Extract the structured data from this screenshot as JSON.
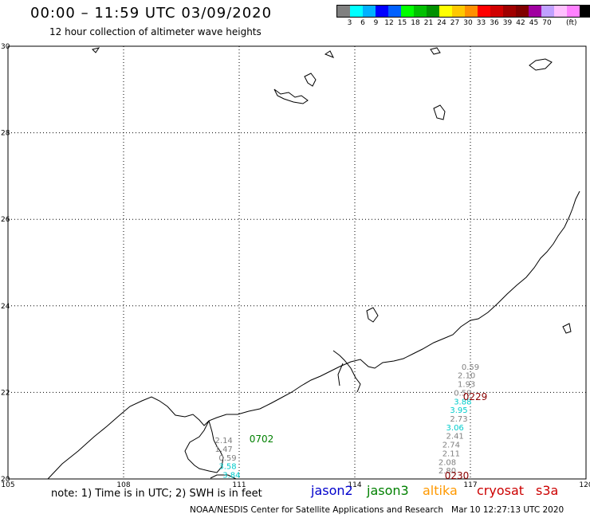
{
  "title": "00:00 – 11:59 UTC 03/09/2020",
  "subtitle": "12 hour collection of altimeter wave heights",
  "legend": {
    "colors": [
      "#808080",
      "#00ffff",
      "#00b0ff",
      "#0000ff",
      "#0060ff",
      "#00ff00",
      "#00c000",
      "#009000",
      "#ffff00",
      "#ffc800",
      "#ff9000",
      "#ff0000",
      "#d00000",
      "#a00000",
      "#800000",
      "#a000a0",
      "#c0a0ff",
      "#ffc0ff",
      "#ff80ff",
      "#000000"
    ],
    "ticks": [
      "3",
      "6",
      "9",
      "12",
      "15",
      "18",
      "21",
      "24",
      "27",
      "30",
      "33",
      "36",
      "39",
      "42",
      "45",
      "70"
    ],
    "unit": "(ft)"
  },
  "axes": {
    "lon_ticks": [
      "105",
      "108",
      "111",
      "114",
      "117",
      "120"
    ],
    "lat_ticks": [
      "30",
      "28",
      "26",
      "24",
      "22",
      "20"
    ]
  },
  "tracks": [
    {
      "satellite": "cryosat",
      "pass_label": "0229",
      "color": "#8b0000",
      "points": [
        {
          "lat": 22.6,
          "lon": 117.0,
          "v": "0.59",
          "c": "#808080"
        },
        {
          "lat": 22.4,
          "lon": 116.9,
          "v": "2.10",
          "c": "#808080"
        },
        {
          "lat": 22.2,
          "lon": 116.9,
          "v": "1.93",
          "c": "#808080"
        },
        {
          "lat": 22.0,
          "lon": 116.8,
          "v": "0.59",
          "c": "#808080"
        },
        {
          "lat": 21.8,
          "lon": 116.8,
          "v": "3.88",
          "c": "#00cccc"
        },
        {
          "lat": 21.6,
          "lon": 116.7,
          "v": "3.95",
          "c": "#00cccc"
        },
        {
          "lat": 21.4,
          "lon": 116.7,
          "v": "2.73",
          "c": "#808080"
        },
        {
          "lat": 21.2,
          "lon": 116.6,
          "v": "3.06",
          "c": "#00cccc"
        },
        {
          "lat": 21.0,
          "lon": 116.6,
          "v": "2.41",
          "c": "#808080"
        },
        {
          "lat": 20.8,
          "lon": 116.5,
          "v": "2.74",
          "c": "#808080"
        },
        {
          "lat": 20.6,
          "lon": 116.5,
          "v": "2.11",
          "c": "#808080"
        },
        {
          "lat": 20.4,
          "lon": 116.4,
          "v": "2.08",
          "c": "#808080"
        },
        {
          "lat": 20.2,
          "lon": 116.4,
          "v": "2.80",
          "c": "#808080"
        }
      ]
    },
    {
      "satellite": "cryosat",
      "pass_label": "0230",
      "color": "#8b0000",
      "points": []
    },
    {
      "satellite": "jason3",
      "pass_label": "0702",
      "color": "#008000",
      "points": [
        {
          "lat": 20.9,
          "lon": 110.6,
          "v": "2.14",
          "c": "#808080"
        },
        {
          "lat": 20.7,
          "lon": 110.6,
          "v": "1.47",
          "c": "#808080"
        },
        {
          "lat": 20.5,
          "lon": 110.7,
          "v": "0.59",
          "c": "#808080"
        },
        {
          "lat": 20.3,
          "lon": 110.7,
          "v": "3.58",
          "c": "#00cccc"
        },
        {
          "lat": 20.1,
          "lon": 110.8,
          "v": "3.84",
          "c": "#00cccc"
        }
      ]
    }
  ],
  "note": "note: 1) Time is in UTC; 2) SWH is in feet",
  "satellites": [
    {
      "name": "jason2",
      "color": "#0000cc"
    },
    {
      "name": "jason3",
      "color": "#008000"
    },
    {
      "name": "altika",
      "color": "#ff9900"
    },
    {
      "name": "cryosat",
      "color": "#cc0000"
    },
    {
      "name": "s3a",
      "color": "#cc0000"
    }
  ],
  "credit": "NOAA/NESDIS Center for Satellite Applications and Research   Mar 10 12:27:13 UTC 2020"
}
